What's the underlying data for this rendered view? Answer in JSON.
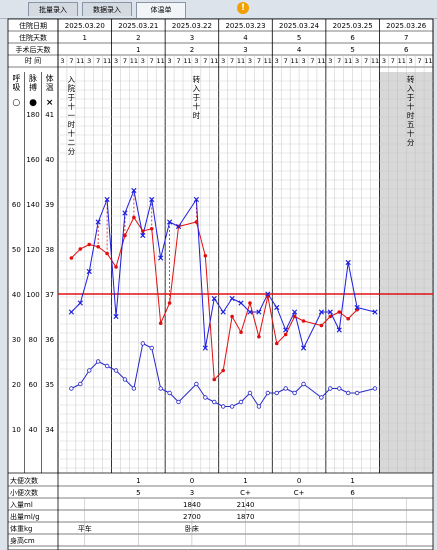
{
  "tabs": [
    "批量录入",
    "数据录入",
    "体温单"
  ],
  "alert_icon": "!",
  "header_rows": {
    "date_label": "住院日期",
    "dates": [
      "2025.03.20",
      "2025.03.21",
      "2025.03.22",
      "2025.03.23",
      "2025.03.24",
      "2025.03.25",
      "2025.03.26"
    ],
    "days_label": "住院天数",
    "days": [
      "1",
      "2",
      "3",
      "4",
      "5",
      "6",
      "7"
    ],
    "postop_label": "手术后天数",
    "postop": [
      "",
      "1",
      "2",
      "3",
      "4",
      "5",
      "6"
    ],
    "time_label": "时 间",
    "time_ticks": [
      "3",
      "7",
      "11",
      "3",
      "7",
      "11"
    ]
  },
  "axis_headers": {
    "resp": "呼吸",
    "pulse": "脉搏",
    "temp": "体温",
    "resp_symbol": "○",
    "pulse_symbol": "●",
    "temp_symbol": "×"
  },
  "axis_ticks": {
    "pulse": [
      "180",
      "160",
      "140",
      "120",
      "100",
      "80",
      "60",
      "40"
    ],
    "temp": [
      "41",
      "40",
      "39",
      "38",
      "37",
      "36",
      "35",
      "34"
    ],
    "resp": [
      "60",
      "50",
      "40",
      "30",
      "20",
      "10"
    ]
  },
  "events": [
    {
      "col": 1,
      "text": "入|院|于|十|一|时|十|二|分"
    },
    {
      "col": 15,
      "text": "转|入|于|十|时"
    },
    {
      "col": 39,
      "text": "转|入|于|十|时|五|十|分"
    }
  ],
  "colors": {
    "temp": "#1f1fe0",
    "pulse": "#e01010",
    "resp": "#2828c8",
    "reference_line": "#e01010",
    "shaded_day": "#d8d8d8"
  },
  "chart_data": {
    "type": "line",
    "x_unit": "4-hour time slot index (0 = 2025.03.20 03:00)",
    "reference_temp": 37,
    "series": [
      {
        "name": "体温",
        "points": [
          [
            1,
            36.6
          ],
          [
            2,
            36.8
          ],
          [
            3,
            37.5
          ],
          [
            4,
            38.6
          ],
          [
            5,
            39.1
          ],
          [
            6,
            36.5
          ],
          [
            7,
            38.8
          ],
          [
            8,
            39.3
          ],
          [
            9,
            38.3
          ],
          [
            10,
            39.1
          ],
          [
            11,
            37.8
          ],
          [
            12,
            38.6
          ],
          [
            13,
            38.5
          ],
          [
            15,
            39.1
          ],
          [
            16,
            35.8
          ],
          [
            17,
            36.9
          ],
          [
            18,
            36.6
          ],
          [
            19,
            36.9
          ],
          [
            20,
            36.8
          ],
          [
            21,
            36.6
          ],
          [
            22,
            36.6
          ],
          [
            23,
            37.0
          ],
          [
            24,
            36.7
          ],
          [
            25,
            36.2
          ],
          [
            26,
            36.6
          ],
          [
            27,
            35.8
          ],
          [
            29,
            36.6
          ],
          [
            30,
            36.6
          ],
          [
            31,
            36.2
          ],
          [
            32,
            37.7
          ],
          [
            33,
            36.7
          ],
          [
            35,
            36.6
          ]
        ]
      },
      {
        "name": "脉搏",
        "points": [
          [
            1,
            116
          ],
          [
            2,
            120
          ],
          [
            3,
            122
          ],
          [
            4,
            121
          ],
          [
            5,
            118
          ],
          [
            6,
            112
          ],
          [
            7,
            126
          ],
          [
            8,
            134
          ],
          [
            9,
            128
          ],
          [
            10,
            129
          ],
          [
            11,
            87
          ],
          [
            12,
            96
          ],
          [
            13,
            130
          ],
          [
            15,
            132
          ],
          [
            16,
            117
          ],
          [
            17,
            62
          ],
          [
            18,
            66
          ],
          [
            19,
            90
          ],
          [
            20,
            83
          ],
          [
            21,
            96
          ],
          [
            22,
            81
          ],
          [
            23,
            99
          ],
          [
            24,
            78
          ],
          [
            25,
            82
          ],
          [
            26,
            90
          ],
          [
            27,
            88
          ],
          [
            29,
            86
          ],
          [
            30,
            90
          ],
          [
            31,
            92
          ],
          [
            32,
            89
          ],
          [
            33,
            93
          ]
        ]
      },
      {
        "name": "呼吸",
        "points": [
          [
            1,
            19
          ],
          [
            2,
            20
          ],
          [
            3,
            23
          ],
          [
            4,
            25
          ],
          [
            5,
            24
          ],
          [
            6,
            23
          ],
          [
            7,
            21
          ],
          [
            8,
            19
          ],
          [
            9,
            29
          ],
          [
            10,
            28
          ],
          [
            11,
            19
          ],
          [
            12,
            18
          ],
          [
            13,
            16
          ],
          [
            15,
            20
          ],
          [
            16,
            17
          ],
          [
            17,
            16
          ],
          [
            18,
            15
          ],
          [
            19,
            15
          ],
          [
            20,
            16
          ],
          [
            21,
            18
          ],
          [
            22,
            15
          ],
          [
            23,
            18
          ],
          [
            24,
            18
          ],
          [
            25,
            19
          ],
          [
            26,
            18
          ],
          [
            27,
            20
          ],
          [
            29,
            17
          ],
          [
            30,
            19
          ],
          [
            31,
            19
          ],
          [
            32,
            18
          ],
          [
            33,
            18
          ],
          [
            35,
            19
          ]
        ]
      }
    ]
  },
  "footer_rows": [
    {
      "label": "大便次数",
      "values": [
        "",
        "1",
        "0",
        "1",
        "0",
        "1",
        ""
      ]
    },
    {
      "label": "小便次数",
      "values": [
        "",
        "5",
        "3",
        "C+",
        "C+",
        "6",
        ""
      ]
    },
    {
      "label": "入量ml",
      "values": [
        "",
        "",
        "1840",
        "2140",
        "",
        "",
        ""
      ]
    },
    {
      "label": "出量ml/g",
      "values": [
        "",
        "",
        "2700",
        "1870",
        "",
        "",
        ""
      ]
    },
    {
      "label": "体重kg",
      "values": [
        "平车",
        "",
        "卧床",
        "",
        "",
        "",
        ""
      ]
    },
    {
      "label": "身高cm",
      "values": [
        "",
        "",
        "",
        "",
        "",
        "",
        ""
      ]
    }
  ]
}
